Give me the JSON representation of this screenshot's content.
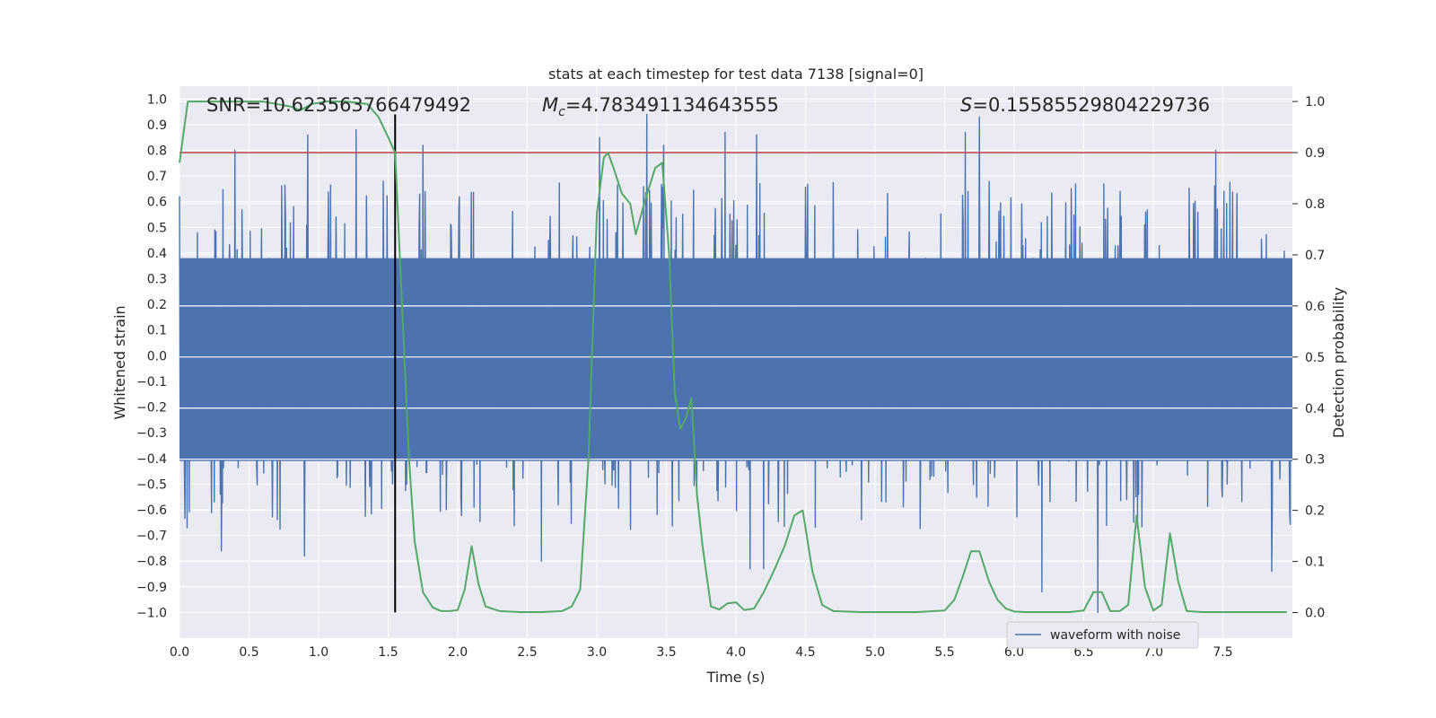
{
  "chart_data": {
    "type": "line",
    "title": "stats at each timestep for test data 7138 [signal=0]",
    "xlabel": "Time (s)",
    "ylabel": "Whitened strain",
    "ylabel_right": "Detection probability",
    "xlim": [
      0,
      8
    ],
    "ylim": [
      -1.1,
      1.05
    ],
    "ylim_right": [
      -0.05,
      1.03
    ],
    "x_ticks": [
      0.0,
      0.5,
      1.0,
      1.5,
      2.0,
      2.5,
      3.0,
      3.5,
      4.0,
      4.5,
      5.0,
      5.5,
      6.0,
      6.5,
      7.0,
      7.5
    ],
    "x_tick_labels": [
      "0.0",
      "0.5",
      "1.0",
      "1.5",
      "2.0",
      "2.5",
      "3.0",
      "3.5",
      "4.0",
      "4.5",
      "5.0",
      "5.5",
      "6.0",
      "6.5",
      "7.0",
      "7.5"
    ],
    "y_ticks": [
      1.0,
      0.9,
      0.8,
      0.7,
      0.6,
      0.5,
      0.4,
      0.3,
      0.2,
      0.1,
      0.0,
      -0.1,
      -0.2,
      -0.3,
      -0.4,
      -0.5,
      -0.6,
      -0.7,
      -0.8,
      -0.9,
      -1.0
    ],
    "y_tick_labels": [
      "1.0",
      "0.9",
      "0.8",
      "0.7",
      "0.6",
      "0.5",
      "0.4",
      "0.3",
      "0.2",
      "0.1",
      "0.0",
      "-0.1",
      "-0.2",
      "-0.3",
      "-0.4",
      "-0.5",
      "-0.6",
      "-0.7",
      "-0.8",
      "-0.9",
      "-1.0"
    ],
    "y_right_ticks": [
      1.0,
      0.9,
      0.8,
      0.7,
      0.6,
      0.5,
      0.4,
      0.3,
      0.2,
      0.1,
      0.0
    ],
    "y_right_tick_labels": [
      "1.0",
      "0.9",
      "0.8",
      "0.7",
      "0.6",
      "0.5",
      "0.4",
      "0.3",
      "0.2",
      "0.1",
      "0.0"
    ],
    "annotations": {
      "snr": "SNR=10.623563766479492",
      "mc_symbol": "M",
      "mc_sub": "c",
      "mc_value": "=4.783491134643555",
      "s_symbol": "S",
      "s_value": "=0.15585529804229736"
    },
    "legend": {
      "label": "waveform with noise",
      "position": "lower-right"
    },
    "threshold": {
      "value": 0.9,
      "axis": "right",
      "color": "#c44e52"
    },
    "vline": {
      "x": 1.55,
      "y_from": -1.0,
      "y_to": 0.94,
      "color": "#000000"
    },
    "waveform": {
      "name": "waveform with noise",
      "color": "#4c72b0",
      "samples": 2048,
      "duration": 8.0,
      "band_upper": 0.38,
      "band_lower": -0.41,
      "peaks": [
        {
          "t": 0.92,
          "v": 0.86
        },
        {
          "t": 1.27,
          "v": 0.88
        },
        {
          "t": 1.75,
          "v": 0.82
        },
        {
          "t": 3.02,
          "v": 0.85
        },
        {
          "t": 3.36,
          "v": 0.94
        },
        {
          "t": 3.48,
          "v": 0.82
        },
        {
          "t": 3.92,
          "v": 0.87
        },
        {
          "t": 4.15,
          "v": 0.86
        },
        {
          "t": 5.65,
          "v": 0.87
        },
        {
          "t": 5.75,
          "v": 0.93
        },
        {
          "t": 7.45,
          "v": 0.8
        },
        {
          "t": 0.4,
          "v": 0.8
        },
        {
          "t": 0.9,
          "v": -0.78
        },
        {
          "t": 2.6,
          "v": -0.8
        },
        {
          "t": 4.1,
          "v": -0.83
        },
        {
          "t": 4.2,
          "v": -0.83
        },
        {
          "t": 6.2,
          "v": -0.92
        },
        {
          "t": 6.6,
          "v": -1.0
        },
        {
          "t": 7.85,
          "v": -0.84
        },
        {
          "t": 0.3,
          "v": -0.76
        }
      ]
    },
    "detection": {
      "name": "Detection probability",
      "color": "#55a868",
      "x": [
        0.0,
        0.06,
        0.2,
        0.4,
        0.6,
        0.7,
        0.8,
        0.87,
        0.95,
        1.05,
        1.2,
        1.35,
        1.43,
        1.5,
        1.55,
        1.6,
        1.65,
        1.69,
        1.75,
        1.82,
        1.88,
        1.95,
        2.0,
        2.05,
        2.1,
        2.15,
        2.2,
        2.3,
        2.45,
        2.6,
        2.75,
        2.82,
        2.88,
        2.94,
        3.0,
        3.05,
        3.08,
        3.12,
        3.18,
        3.24,
        3.28,
        3.35,
        3.42,
        3.47,
        3.52,
        3.56,
        3.6,
        3.64,
        3.68,
        3.72,
        3.76,
        3.82,
        3.88,
        3.94,
        4.0,
        4.06,
        4.13,
        4.2,
        4.27,
        4.35,
        4.42,
        4.48,
        4.55,
        4.62,
        4.7,
        4.9,
        5.1,
        5.3,
        5.5,
        5.57,
        5.63,
        5.69,
        5.75,
        5.82,
        5.88,
        5.94,
        6.0,
        6.08,
        6.2,
        6.4,
        6.5,
        6.57,
        6.63,
        6.69,
        6.76,
        6.82,
        6.88,
        6.94,
        7.0,
        7.06,
        7.12,
        7.18,
        7.24,
        7.35,
        7.6,
        7.96
      ],
      "y": [
        0.88,
        1.0,
        1.0,
        1.0,
        1.0,
        0.995,
        0.99,
        0.983,
        0.995,
        1.0,
        1.0,
        0.995,
        0.97,
        0.93,
        0.9,
        0.6,
        0.3,
        0.14,
        0.04,
        0.01,
        0.003,
        0.003,
        0.005,
        0.045,
        0.13,
        0.055,
        0.012,
        0.003,
        0.001,
        0.001,
        0.003,
        0.012,
        0.045,
        0.3,
        0.78,
        0.89,
        0.9,
        0.87,
        0.82,
        0.8,
        0.74,
        0.81,
        0.87,
        0.88,
        0.7,
        0.43,
        0.36,
        0.38,
        0.42,
        0.23,
        0.13,
        0.012,
        0.006,
        0.018,
        0.02,
        0.005,
        0.008,
        0.04,
        0.08,
        0.13,
        0.19,
        0.2,
        0.08,
        0.015,
        0.003,
        0.001,
        0.001,
        0.001,
        0.004,
        0.025,
        0.07,
        0.12,
        0.12,
        0.06,
        0.025,
        0.008,
        0.002,
        0.001,
        0.001,
        0.001,
        0.004,
        0.04,
        0.04,
        0.003,
        0.003,
        0.015,
        0.19,
        0.05,
        0.004,
        0.015,
        0.155,
        0.06,
        0.003,
        0.001,
        0.001,
        0.001
      ]
    }
  }
}
